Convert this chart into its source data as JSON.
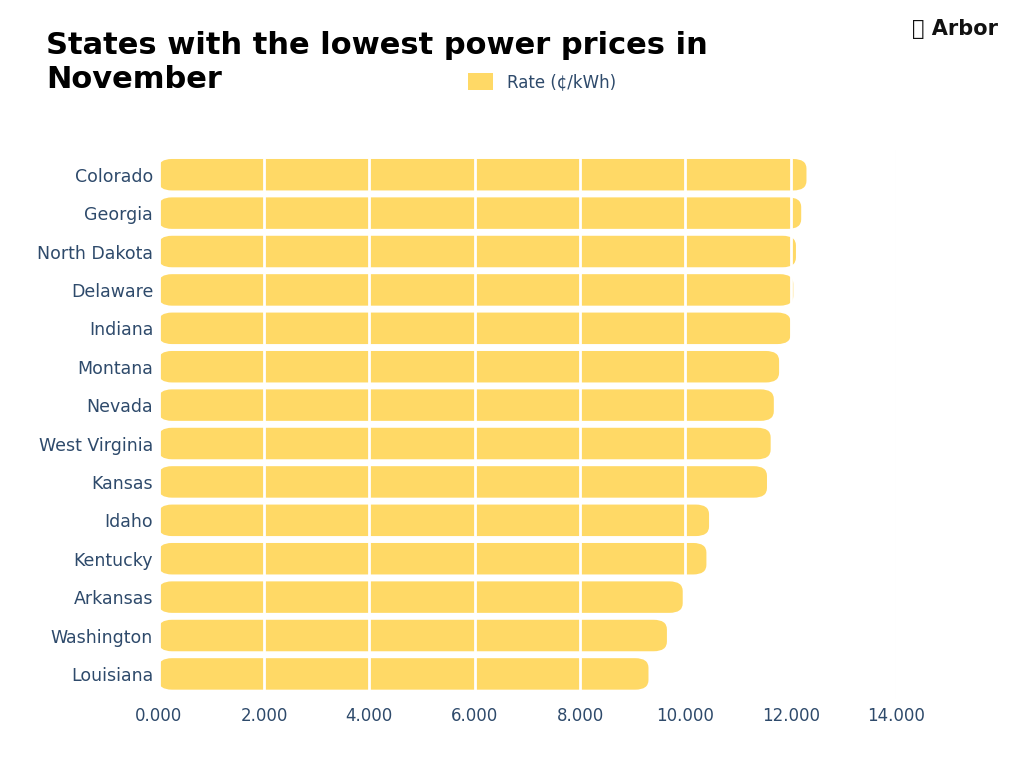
{
  "title": "States with the lowest power prices in\nNovember",
  "legend_label": "Rate (¢/kWh)",
  "states": [
    "Louisiana",
    "Washington",
    "Arkansas",
    "Kentucky",
    "Idaho",
    "Kansas",
    "West Virginia",
    "Nevada",
    "Montana",
    "Indiana",
    "Delaware",
    "North Dakota",
    "Georgia",
    "Colorado"
  ],
  "values": [
    9.3,
    9.65,
    9.95,
    10.4,
    10.45,
    11.55,
    11.62,
    11.68,
    11.78,
    12.0,
    12.05,
    12.1,
    12.2,
    12.3
  ],
  "bar_color": "#FFD966",
  "background_color": "#FFFFFF",
  "title_color": "#000000",
  "label_color": "#2E4A6B",
  "tick_color": "#2E4A6B",
  "grid_color": "#FFFFFF",
  "xlim": [
    0,
    14.0
  ],
  "xticks": [
    0,
    2,
    4,
    6,
    8,
    10,
    12,
    14
  ],
  "xtick_labels": [
    "0.000",
    "2.000",
    "4.000",
    "6.000",
    "8.000",
    "10.000",
    "12.000",
    "14.000"
  ],
  "title_fontsize": 22,
  "label_fontsize": 12.5,
  "tick_fontsize": 12,
  "legend_fontsize": 12,
  "bar_height": 0.82,
  "rounding_size": 0.25
}
